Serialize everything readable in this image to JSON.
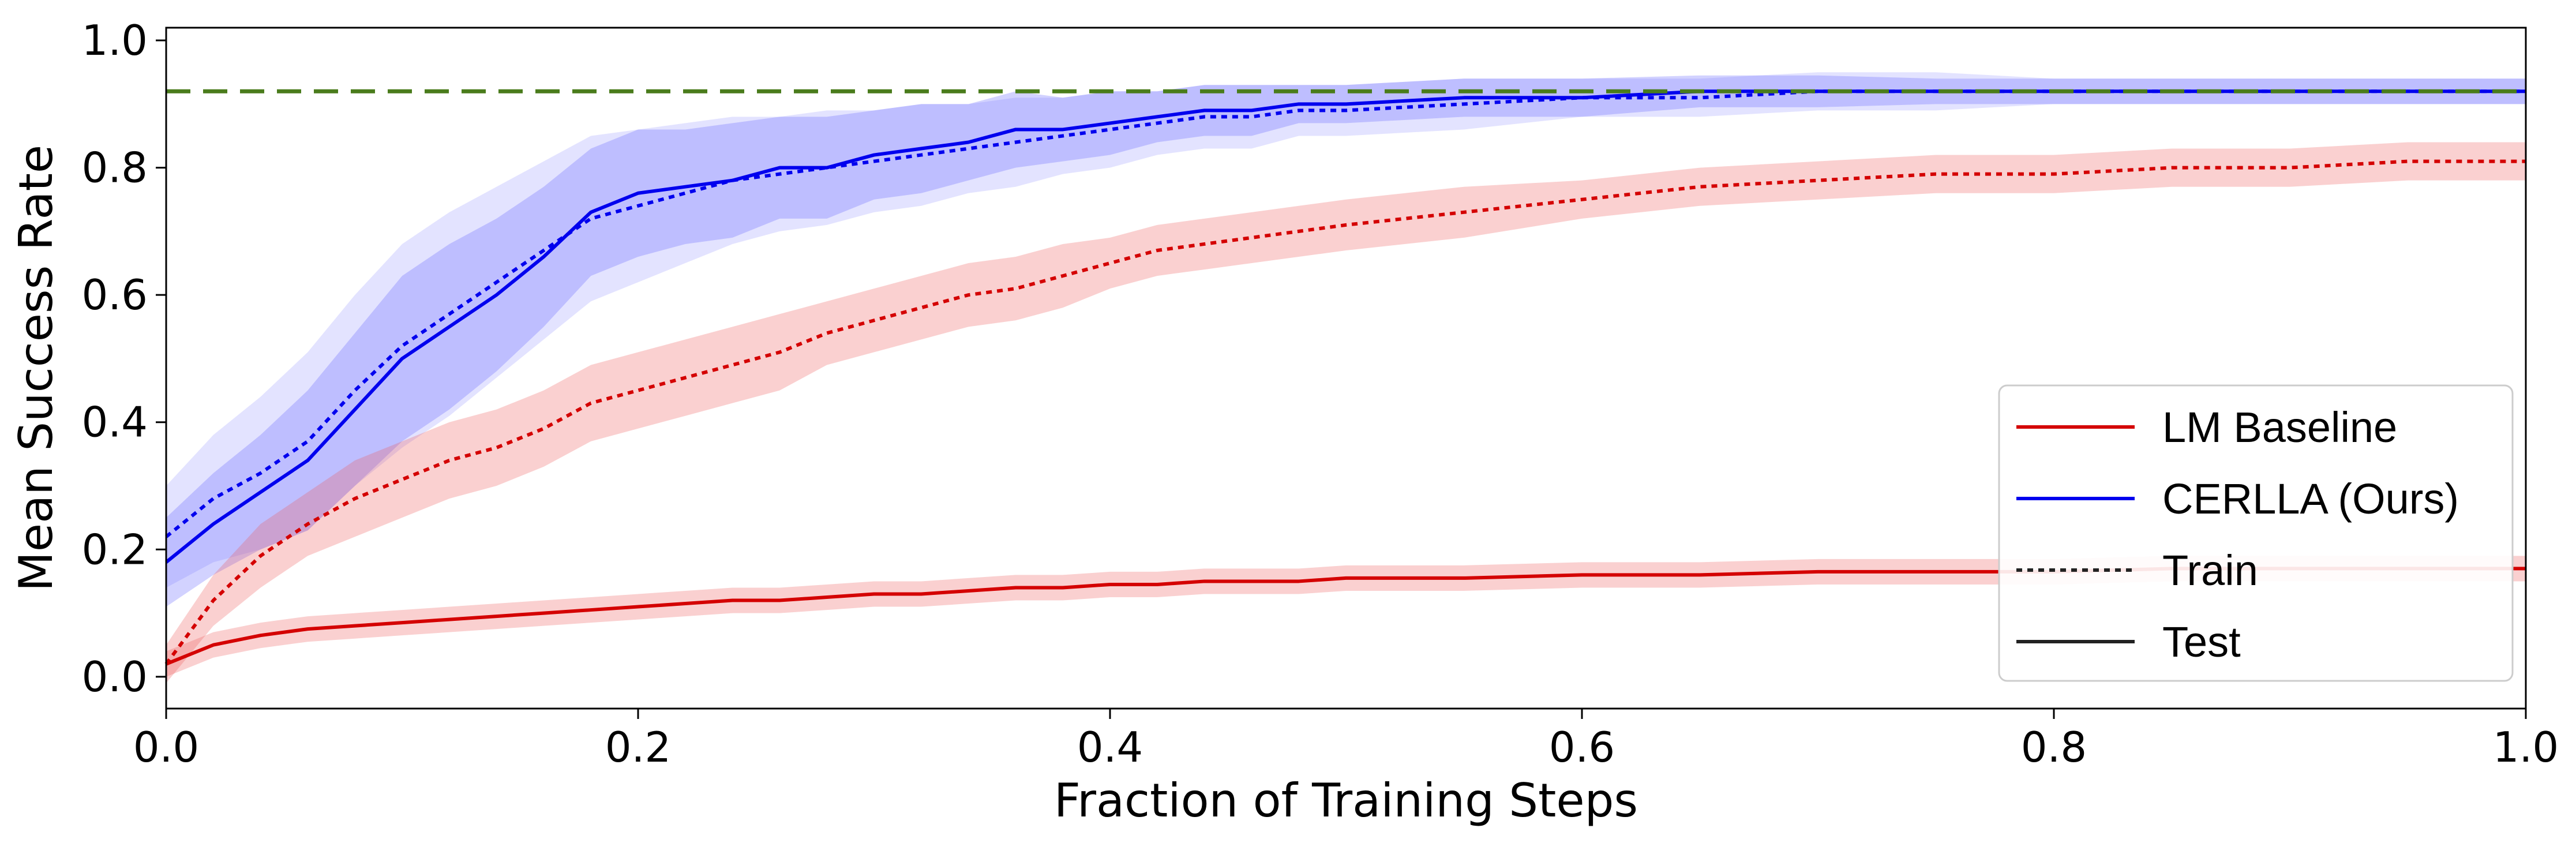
{
  "chart_data": {
    "type": "line",
    "title": "",
    "xlabel": "Fraction of Training Steps",
    "ylabel": "Mean Success Rate",
    "xlim": [
      0.0,
      1.0
    ],
    "ylim": [
      -0.05,
      1.02
    ],
    "x_ticks": [
      "0.0",
      "0.2",
      "0.4",
      "0.6",
      "0.8",
      "1.0"
    ],
    "y_ticks": [
      "0.0",
      "0.2",
      "0.4",
      "0.6",
      "0.8",
      "1.0"
    ],
    "grid": false,
    "legend_placement": "lower-right",
    "reference_line": {
      "y": 0.92,
      "color": "#4a7c1c",
      "style": "dashed"
    },
    "legend": {
      "items": [
        {
          "label": "LM Baseline",
          "color": "#d40000",
          "style": "solid"
        },
        {
          "label": "CERLLA (Ours)",
          "color": "#0000ee",
          "style": "solid"
        },
        {
          "label": "Train",
          "color": "#222222",
          "style": "dotted"
        },
        {
          "label": "Test",
          "color": "#222222",
          "style": "solid"
        }
      ]
    },
    "series": [
      {
        "method": "CERLLA (Ours)",
        "split": "Test",
        "color": "#0000ee",
        "style": "solid",
        "band_color": "#3333ff",
        "band_opacity": 0.22,
        "x": [
          0.0,
          0.02,
          0.04,
          0.06,
          0.08,
          0.1,
          0.12,
          0.14,
          0.16,
          0.18,
          0.2,
          0.22,
          0.24,
          0.26,
          0.28,
          0.3,
          0.32,
          0.34,
          0.36,
          0.38,
          0.4,
          0.42,
          0.44,
          0.46,
          0.48,
          0.5,
          0.55,
          0.6,
          0.65,
          0.7,
          0.75,
          0.8,
          0.85,
          0.9,
          0.95,
          1.0
        ],
        "y": [
          0.18,
          0.24,
          0.29,
          0.34,
          0.42,
          0.5,
          0.55,
          0.6,
          0.66,
          0.73,
          0.76,
          0.77,
          0.78,
          0.8,
          0.8,
          0.82,
          0.83,
          0.84,
          0.86,
          0.86,
          0.87,
          0.88,
          0.89,
          0.89,
          0.9,
          0.9,
          0.91,
          0.91,
          0.92,
          0.92,
          0.92,
          0.92,
          0.92,
          0.92,
          0.92,
          0.92
        ],
        "band": [
          0.07,
          0.08,
          0.09,
          0.11,
          0.12,
          0.13,
          0.13,
          0.12,
          0.11,
          0.1,
          0.1,
          0.09,
          0.09,
          0.08,
          0.08,
          0.07,
          0.07,
          0.06,
          0.06,
          0.05,
          0.05,
          0.04,
          0.04,
          0.04,
          0.03,
          0.03,
          0.03,
          0.03,
          0.025,
          0.025,
          0.02,
          0.02,
          0.02,
          0.02,
          0.02,
          0.02
        ]
      },
      {
        "method": "CERLLA (Ours)",
        "split": "Train",
        "color": "#0000ee",
        "style": "dotted",
        "band_color": "#6666ff",
        "band_opacity": 0.18,
        "x": [
          0.0,
          0.02,
          0.04,
          0.06,
          0.08,
          0.1,
          0.12,
          0.14,
          0.16,
          0.18,
          0.2,
          0.22,
          0.24,
          0.26,
          0.28,
          0.3,
          0.32,
          0.34,
          0.36,
          0.38,
          0.4,
          0.42,
          0.44,
          0.46,
          0.48,
          0.5,
          0.55,
          0.6,
          0.65,
          0.7,
          0.75,
          0.8,
          0.85,
          0.9,
          0.95,
          1.0
        ],
        "y": [
          0.22,
          0.28,
          0.32,
          0.37,
          0.45,
          0.52,
          0.57,
          0.62,
          0.67,
          0.72,
          0.74,
          0.76,
          0.78,
          0.79,
          0.8,
          0.81,
          0.82,
          0.83,
          0.84,
          0.85,
          0.86,
          0.87,
          0.88,
          0.88,
          0.89,
          0.89,
          0.9,
          0.91,
          0.91,
          0.92,
          0.92,
          0.92,
          0.92,
          0.92,
          0.92,
          0.92
        ],
        "band": [
          0.08,
          0.1,
          0.12,
          0.14,
          0.15,
          0.16,
          0.16,
          0.15,
          0.14,
          0.13,
          0.12,
          0.11,
          0.1,
          0.09,
          0.09,
          0.08,
          0.08,
          0.07,
          0.07,
          0.06,
          0.06,
          0.05,
          0.05,
          0.05,
          0.04,
          0.04,
          0.04,
          0.03,
          0.03,
          0.03,
          0.03,
          0.02,
          0.02,
          0.02,
          0.02,
          0.02
        ]
      },
      {
        "method": "LM Baseline",
        "split": "Train",
        "color": "#d40000",
        "style": "dotted",
        "band_color": "#ee5555",
        "band_opacity": 0.28,
        "x": [
          0.0,
          0.02,
          0.04,
          0.06,
          0.08,
          0.1,
          0.12,
          0.14,
          0.16,
          0.18,
          0.2,
          0.22,
          0.24,
          0.26,
          0.28,
          0.3,
          0.32,
          0.34,
          0.36,
          0.38,
          0.4,
          0.42,
          0.44,
          0.46,
          0.48,
          0.5,
          0.55,
          0.6,
          0.65,
          0.7,
          0.75,
          0.8,
          0.85,
          0.9,
          0.95,
          1.0
        ],
        "y": [
          0.02,
          0.12,
          0.19,
          0.24,
          0.28,
          0.31,
          0.34,
          0.36,
          0.39,
          0.43,
          0.45,
          0.47,
          0.49,
          0.51,
          0.54,
          0.56,
          0.58,
          0.6,
          0.61,
          0.63,
          0.65,
          0.67,
          0.68,
          0.69,
          0.7,
          0.71,
          0.73,
          0.75,
          0.77,
          0.78,
          0.79,
          0.79,
          0.8,
          0.8,
          0.81,
          0.81
        ],
        "band": [
          0.03,
          0.04,
          0.05,
          0.05,
          0.06,
          0.06,
          0.06,
          0.06,
          0.06,
          0.06,
          0.06,
          0.06,
          0.06,
          0.06,
          0.05,
          0.05,
          0.05,
          0.05,
          0.05,
          0.05,
          0.04,
          0.04,
          0.04,
          0.04,
          0.04,
          0.04,
          0.04,
          0.03,
          0.03,
          0.03,
          0.03,
          0.03,
          0.03,
          0.03,
          0.03,
          0.03
        ]
      },
      {
        "method": "LM Baseline",
        "split": "Test",
        "color": "#d40000",
        "style": "solid",
        "band_color": "#ee5555",
        "band_opacity": 0.28,
        "x": [
          0.0,
          0.02,
          0.04,
          0.06,
          0.08,
          0.1,
          0.12,
          0.14,
          0.16,
          0.18,
          0.2,
          0.22,
          0.24,
          0.26,
          0.28,
          0.3,
          0.32,
          0.34,
          0.36,
          0.38,
          0.4,
          0.42,
          0.44,
          0.46,
          0.48,
          0.5,
          0.55,
          0.6,
          0.65,
          0.7,
          0.75,
          0.8,
          0.85,
          0.9,
          0.95,
          1.0
        ],
        "y": [
          0.02,
          0.05,
          0.065,
          0.075,
          0.08,
          0.085,
          0.09,
          0.095,
          0.1,
          0.105,
          0.11,
          0.115,
          0.12,
          0.12,
          0.125,
          0.13,
          0.13,
          0.135,
          0.14,
          0.14,
          0.145,
          0.145,
          0.15,
          0.15,
          0.15,
          0.155,
          0.155,
          0.16,
          0.16,
          0.165,
          0.165,
          0.165,
          0.17,
          0.17,
          0.17,
          0.17
        ],
        "band": [
          0.02,
          0.02,
          0.02,
          0.02,
          0.02,
          0.02,
          0.02,
          0.02,
          0.02,
          0.02,
          0.02,
          0.02,
          0.02,
          0.02,
          0.02,
          0.02,
          0.02,
          0.02,
          0.02,
          0.02,
          0.02,
          0.02,
          0.02,
          0.02,
          0.02,
          0.02,
          0.02,
          0.02,
          0.02,
          0.02,
          0.02,
          0.02,
          0.02,
          0.02,
          0.02,
          0.02
        ]
      }
    ]
  }
}
